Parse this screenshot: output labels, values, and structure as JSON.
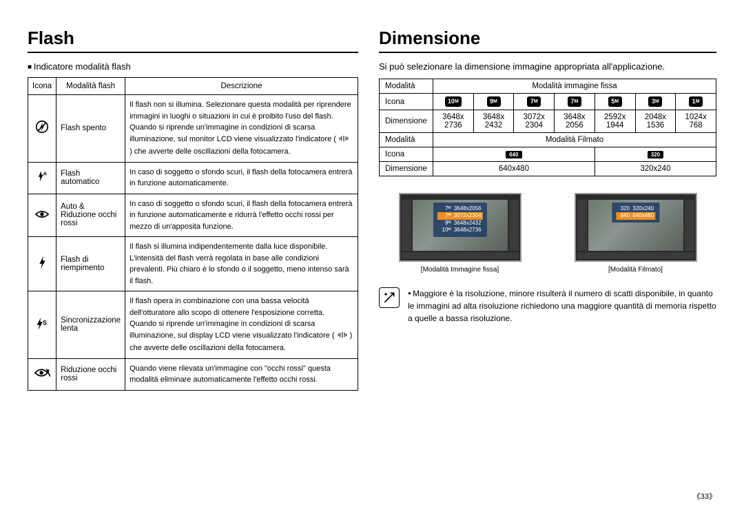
{
  "left": {
    "title": "Flash",
    "subhead": "Indicatore modalità flash",
    "headers": {
      "icon": "Icona",
      "mode": "Modalità flash",
      "desc": "Descrizione"
    },
    "rows": [
      {
        "icon": "flash-off",
        "mode": "Flash spento",
        "desc": "Il flash non si illumina. Selezionare questa modalità per riprendere immagini in luoghi o situazioni in cui è proibito l'uso del flash. Quando si riprende un'immagine in condizioni di scarsa illuminazione, sul monitor LCD viene visualizzato l'indicatore (   ) che avverte delle oscillazioni della fotocamera.",
        "font_class": "smalltxt"
      },
      {
        "icon": "flash-auto",
        "mode": "Flash automatico",
        "desc": "In caso di soggetto o sfondo scuri, il flash della fotocamera entrerà in funzione automaticamente."
      },
      {
        "icon": "eye",
        "mode": "Auto & Riduzione occhi rossi",
        "desc": "In caso di soggetto o sfondo scuri, il flash della fotocamera entrerà in funzione automaticamente e ridurrà l'effetto occhi rossi per mezzo di un'apposita funzione."
      },
      {
        "icon": "flash-fill",
        "mode": "Flash di riempimento",
        "desc": "Il flash si illumina indipendentemente dalla luce disponibile. L'intensità del flash verrà regolata in base alle condizioni prevalenti. Più chiaro è lo sfondo o il soggetto, meno intenso sarà il flash."
      },
      {
        "icon": "flash-slow",
        "mode": "Sincronizzazione lenta",
        "mode_class": "smalltxt",
        "desc": "Il flash opera in combinazione con una bassa velocità dell'otturatore allo scopo di ottenere l'esposizione corretta. Quando si riprende un'immagine in condizioni di scarsa illuminazione, sul display LCD viene visualizzato l'indicatore (   ) che avverte delle oscillazioni della fotocamera.",
        "font_class": "smalltxt"
      },
      {
        "icon": "redeye",
        "mode": "Riduzione occhi rossi",
        "desc": "Quando viene rilevata un'immagine con \"occhi rossi\" questa modalità eliminare automaticamente l'effetto occhi rossi."
      }
    ]
  },
  "right": {
    "title": "Dimensione",
    "intro": "Si può selezionare la dimensione immagine appropriata all'applicazione.",
    "labels": {
      "modalita": "Modalità",
      "icona": "Icona",
      "dimensione": "Dimensione",
      "fissa": "Modalità immagine fissa",
      "filmato": "Modalità Filmato"
    },
    "fissa": {
      "badges": [
        "10ᴹ",
        "9ᴹ",
        "7ᴹ",
        "7ᴹ",
        "5ᴹ",
        "3ᴹ",
        "1ᴹ"
      ],
      "dims_top": [
        "3648x",
        "3648x",
        "3072x",
        "3648x",
        "2592x",
        "2048x",
        "1024x"
      ],
      "dims_bot": [
        "2736",
        "2432",
        "2304",
        "2056",
        "1944",
        "1536",
        "768"
      ]
    },
    "filmato": {
      "badges": [
        "640",
        "320"
      ],
      "dims": [
        "640x480",
        "320x240"
      ]
    },
    "preview1": {
      "caption": "[Modalità Immagine fissa]",
      "menu": [
        "3648x2056",
        "3072x2304",
        "3648x2432",
        "3648x2736"
      ],
      "menu_labels": [
        "7ᴹ",
        "7ᴹ",
        "9ᴹ",
        "10ᴹ"
      ],
      "sel_idx": 1
    },
    "preview2": {
      "caption": "[Modalità Filmato]",
      "menu": [
        "320x240",
        "640x480"
      ],
      "menu_labels": [
        "320",
        "640"
      ],
      "sel_idx": 1
    },
    "note": "Maggiore è la risoluzione, minore risulterà il numero di scatti disponibile, in quanto le immagini ad alta risoluzione richiedono una maggiore quantità di memoria rispetto a quelle a bassa risoluzione."
  },
  "page_number": "33",
  "colors": {
    "border": "#000000",
    "badge_bg": "#000000",
    "badge_fg": "#ffffff",
    "menu_bg": "#1e3c64",
    "menu_sel": "#ef8f1f"
  }
}
